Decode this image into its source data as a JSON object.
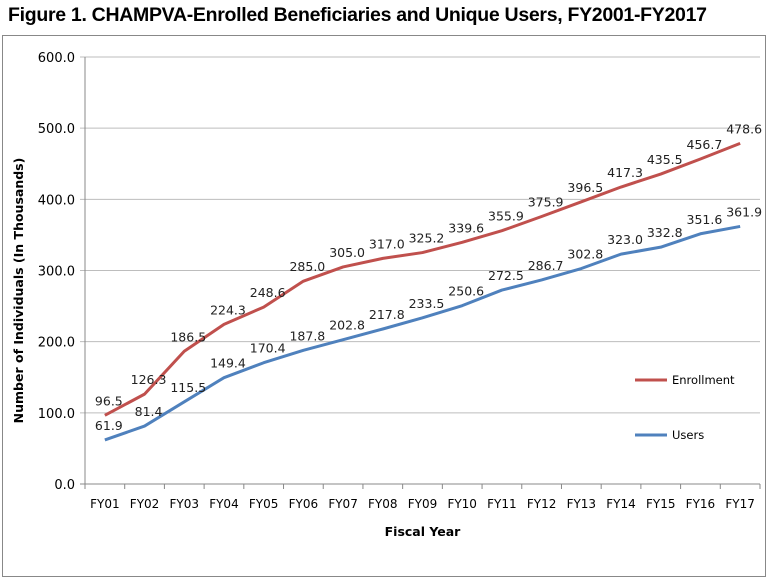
{
  "chart_data": {
    "type": "line",
    "title": "Figure 1. CHAMPVA-Enrolled Beneficiaries and Unique Users, FY2001-FY2017",
    "xlabel": "Fiscal Year",
    "ylabel": "Number of Individuals (In Thousands)",
    "ylim": [
      0,
      600
    ],
    "yticks": [
      "0.0",
      "100.0",
      "200.0",
      "300.0",
      "400.0",
      "500.0",
      "600.0"
    ],
    "grid": true,
    "legend_position": "right",
    "categories": [
      "FY01",
      "FY02",
      "FY03",
      "FY04",
      "FY05",
      "FY06",
      "FY07",
      "FY08",
      "FY09",
      "FY10",
      "FY11",
      "FY12",
      "FY13",
      "FY14",
      "FY15",
      "FY16",
      "FY17"
    ],
    "series": [
      {
        "name": "Enrollment",
        "color": "#c0504d",
        "values": [
          96.5,
          126.3,
          186.5,
          224.3,
          248.6,
          285.0,
          305.0,
          317.0,
          325.2,
          339.6,
          355.9,
          375.9,
          396.5,
          417.3,
          435.5,
          456.7,
          478.6
        ]
      },
      {
        "name": "Users",
        "color": "#4f81bd",
        "values": [
          61.9,
          81.4,
          115.5,
          149.4,
          170.4,
          187.8,
          202.8,
          217.8,
          233.5,
          250.6,
          272.5,
          286.7,
          302.8,
          323.0,
          332.8,
          351.6,
          361.9
        ]
      }
    ]
  }
}
